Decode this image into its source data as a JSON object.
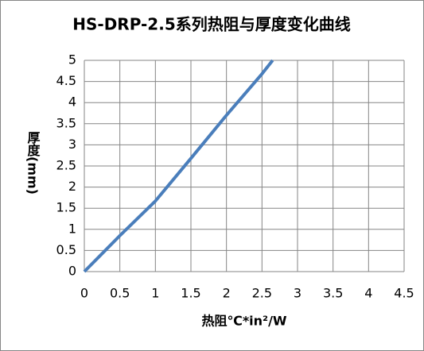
{
  "chart_data": {
    "type": "line",
    "title": "HS-DRP-2.5系列热阻与厚度变化曲线",
    "x_label": "热阻℃*in²/W",
    "y_label": "厚度(mm)",
    "x": [
      0,
      0.5,
      1,
      1.5,
      2,
      2.5,
      2.65
    ],
    "series": [
      {
        "name": "HS-DRP-2.5",
        "color": "#4a7ebb",
        "values": [
          0,
          0.85,
          1.67,
          2.68,
          3.7,
          4.68,
          5
        ]
      }
    ],
    "xlim": [
      0,
      4.5
    ],
    "xticks": [
      0,
      0.5,
      1,
      1.5,
      2,
      2.5,
      3,
      3.5,
      4,
      4.5
    ],
    "ylim": [
      0,
      5
    ],
    "yticks": [
      0,
      0.5,
      1,
      1.5,
      2,
      2.5,
      3,
      3.5,
      4,
      4.5,
      5
    ],
    "grid": true
  }
}
